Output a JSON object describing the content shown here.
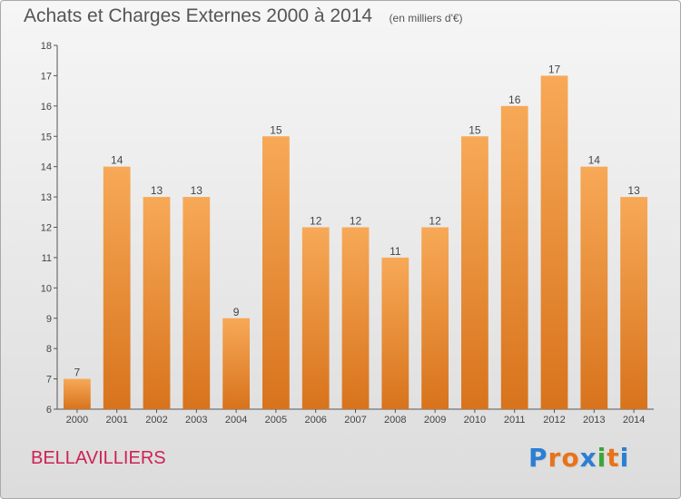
{
  "header": {
    "title": "Achats et Charges Externes 2000 à 2014",
    "unit": "(en milliers d'€)"
  },
  "footer": {
    "place": "BELLAVILLIERS",
    "logo_text": "Proxiti",
    "logo_colors": [
      "#2a7fd4",
      "#e8731a",
      "#e8731a",
      "#2a7fd4",
      "#3aa636",
      "#e8731a",
      "#2a7fd4"
    ]
  },
  "colors": {
    "bar_top": "#f7a957",
    "bar_bottom": "#d8731c",
    "axis": "#555555",
    "grid": "#cfcfcf"
  },
  "chart_data": {
    "type": "bar",
    "title": "Achats et Charges Externes 2000 à 2014",
    "xlabel": "",
    "ylabel": "",
    "ylim": [
      6,
      18
    ],
    "yticks": [
      6,
      7,
      8,
      9,
      10,
      11,
      12,
      13,
      14,
      15,
      16,
      17,
      18
    ],
    "grid": false,
    "categories": [
      "2000",
      "2001",
      "2002",
      "2003",
      "2004",
      "2005",
      "2006",
      "2007",
      "2008",
      "2009",
      "2010",
      "2011",
      "2012",
      "2013",
      "2014"
    ],
    "values": [
      7,
      14,
      13,
      13,
      9,
      15,
      12,
      12,
      11,
      12,
      15,
      16,
      17,
      14,
      13
    ]
  }
}
